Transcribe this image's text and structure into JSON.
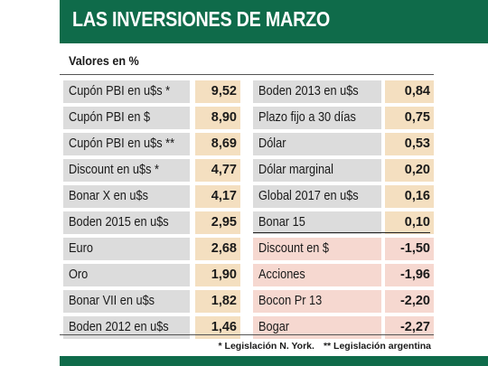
{
  "header": {
    "title": "LAS INVERSIONES DE MARZO"
  },
  "subtitle": "Valores en %",
  "footnotes": [
    "* Legislación N. York.",
    "** Legislación argentina"
  ],
  "colors": {
    "header_green": "#0f6b4a",
    "label_gray": "#dcdcdc",
    "positive_value_bg": "#f4dfc0",
    "negative_bg": "#f6d8d0"
  },
  "chart_data": {
    "type": "table",
    "left_column": [
      {
        "label": "Cupón PBI en u$s *",
        "value": "9,52"
      },
      {
        "label": "Cupón PBI en $",
        "value": "8,90"
      },
      {
        "label": "Cupón PBI en u$s **",
        "value": "8,69"
      },
      {
        "label": "Discount en u$s *",
        "value": "4,77"
      },
      {
        "label": "Bonar X en u$s",
        "value": "4,17"
      },
      {
        "label": "Boden 2015 en u$s",
        "value": "2,95"
      },
      {
        "label": "Euro",
        "value": "2,68"
      },
      {
        "label": "Oro",
        "value": "1,90"
      },
      {
        "label": "Bonar VII en u$s",
        "value": "1,82"
      },
      {
        "label": "Boden 2012 en u$s",
        "value": "1,46"
      }
    ],
    "right_column": [
      {
        "label": "Boden 2013 en u$s",
        "value": "0,84"
      },
      {
        "label": "Plazo fijo a 30 días",
        "value": "0,75"
      },
      {
        "label": "Dólar",
        "value": "0,53"
      },
      {
        "label": "Dólar marginal",
        "value": "0,20"
      },
      {
        "label": "Global 2017 en u$s",
        "value": "0,16"
      },
      {
        "label": "Bonar 15",
        "value": "0,10"
      },
      {
        "label": "Discount en $",
        "value": "-1,50"
      },
      {
        "label": "Acciones",
        "value": "-1,96"
      },
      {
        "label": "Bocon Pr 13",
        "value": "-2,20"
      },
      {
        "label": "Bogar",
        "value": "-2,27"
      }
    ]
  }
}
